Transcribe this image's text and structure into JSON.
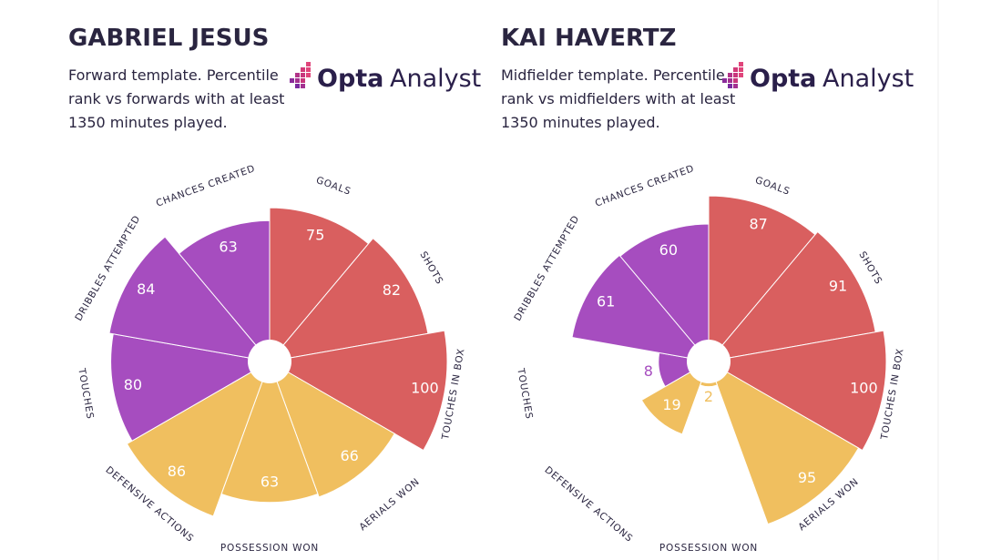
{
  "chart_data": [
    {
      "type": "radial_bar",
      "title": "GABRIEL JESUS",
      "subtitle": [
        "Forward template. Percentile",
        "rank vs forwards with at least",
        "1350 minutes played."
      ],
      "logo": {
        "bold": "Opta",
        "light": "Analyst"
      },
      "categories": [
        "GOALS",
        "SHOTS",
        "TOUCHES IN BOX",
        "AERIALS WON",
        "POSSESSION WON",
        "DEFENSIVE ACTIONS",
        "TOUCHES",
        "DRIBBLES ATTEMPTED",
        "CHANCES CREATED"
      ],
      "values": [
        75,
        82,
        100,
        66,
        63,
        86,
        80,
        84,
        63
      ],
      "colors": [
        "#d95f5f",
        "#d95f5f",
        "#d95f5f",
        "#f0bf5f",
        "#f0bf5f",
        "#f0bf5f",
        "#a64dbf",
        "#a64dbf",
        "#a64dbf"
      ],
      "rlim": [
        0,
        100
      ]
    },
    {
      "type": "radial_bar",
      "title": "KAI HAVERTZ",
      "subtitle": [
        "Midfielder template. Percentile",
        "rank vs midfielders with at least",
        "1350 minutes played."
      ],
      "logo": {
        "bold": "Opta",
        "light": "Analyst"
      },
      "categories": [
        "GOALS",
        "SHOTS",
        "TOUCHES IN BOX",
        "AERIALS WON",
        "POSSESSION WON",
        "DEFENSIVE ACTIONS",
        "TOUCHES",
        "DRIBBLES ATTEMPTED",
        "CHANCES CREATED"
      ],
      "values": [
        87,
        91,
        100,
        95,
        2,
        19,
        8,
        61,
        60
      ],
      "colors": [
        "#d95f5f",
        "#d95f5f",
        "#d95f5f",
        "#f0bf5f",
        "#f0bf5f",
        "#f0bf5f",
        "#a64dbf",
        "#a64dbf",
        "#a64dbf"
      ],
      "rlim": [
        0,
        100
      ]
    }
  ]
}
